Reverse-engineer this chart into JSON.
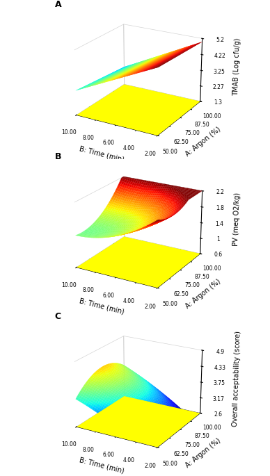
{
  "panel_labels": [
    "A",
    "B",
    "C"
  ],
  "A_yticks": [
    1.3,
    2.275,
    3.25,
    4.225,
    5.2
  ],
  "A_ylim": [
    1.3,
    5.2
  ],
  "A_ylabel": "TMAB (Log cfu/g)",
  "B_yticks": [
    0.6,
    1.0,
    1.4,
    1.8,
    2.2
  ],
  "B_ylim": [
    0.6,
    2.2
  ],
  "B_ylabel": "PV (meq O2/kg)",
  "C_yticks": [
    2.6,
    3.175,
    3.75,
    4.325,
    4.9
  ],
  "C_ylim": [
    2.6,
    4.9
  ],
  "C_ylabel": "Overall acceptability (score)",
  "xlabel_argon": "A: Argon (%)",
  "xlabel_time": "B: Time (min)",
  "argon_ticks": [
    50.0,
    62.5,
    75.0,
    87.5,
    100.0
  ],
  "time_ticks": [
    2.0,
    4.0,
    6.0,
    8.0,
    10.0
  ],
  "floor_color": "#ffff00",
  "background_color": "#ffffff",
  "font_size_label": 7,
  "font_size_tick": 5.5,
  "font_size_panel": 9
}
